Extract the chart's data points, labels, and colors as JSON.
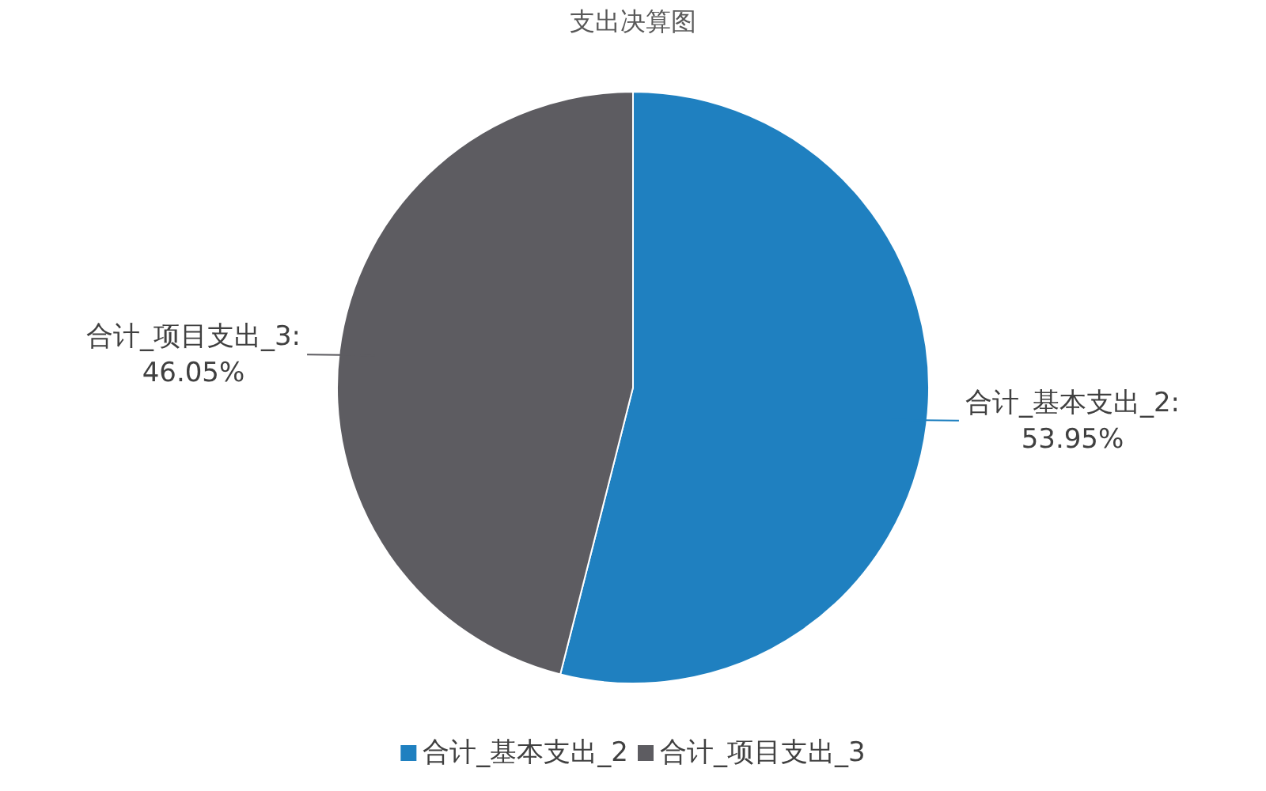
{
  "chart_data": {
    "type": "pie",
    "title": "支出决算图",
    "categories": [
      "合计_基本支出_2",
      "合计_项目支出_3"
    ],
    "values": [
      53.95,
      46.05
    ],
    "value_labels": [
      "合计_基本支出_2: 53.95%",
      "合计_项目支出_3: 46.05%"
    ],
    "colors": [
      "#1f80c0",
      "#5d5c61"
    ],
    "legend": "bottom"
  }
}
